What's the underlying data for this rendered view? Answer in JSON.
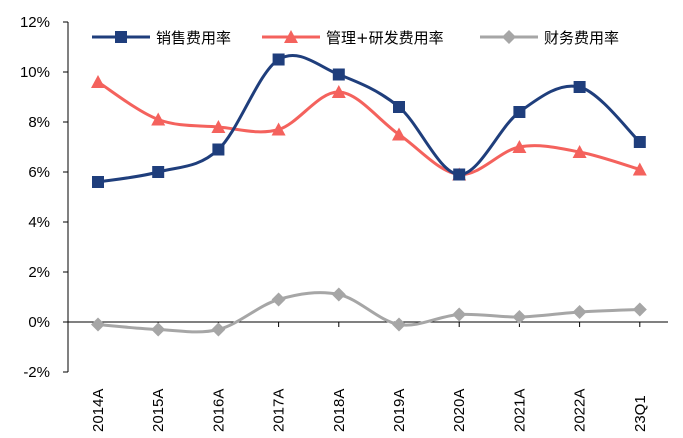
{
  "chart_data": {
    "type": "line",
    "title": "",
    "xlabel": "",
    "ylabel": "",
    "categories": [
      "2014A",
      "2015A",
      "2016A",
      "2017A",
      "2018A",
      "2019A",
      "2020A",
      "2021A",
      "2022A",
      "23Q1"
    ],
    "ylim": [
      -2,
      12
    ],
    "yticks": [
      -2,
      0,
      2,
      4,
      6,
      8,
      10,
      12
    ],
    "ytick_labels": [
      "-2%",
      "0%",
      "2%",
      "4%",
      "6%",
      "8%",
      "10%",
      "12%"
    ],
    "grid": false,
    "legend_position": "top",
    "series": [
      {
        "name": "销售费用率",
        "color": "#1F3E7C",
        "marker": "square",
        "values": [
          5.6,
          6.0,
          6.9,
          10.5,
          9.9,
          8.6,
          5.9,
          8.4,
          9.4,
          7.2
        ]
      },
      {
        "name": "管理+研发费用率",
        "color": "#F4625D",
        "marker": "triangle",
        "values": [
          9.6,
          8.1,
          7.8,
          7.7,
          9.2,
          7.5,
          5.9,
          7.0,
          6.8,
          6.1
        ]
      },
      {
        "name": "财务费用率",
        "color": "#A6A6A6",
        "marker": "diamond",
        "values": [
          -0.1,
          -0.3,
          -0.3,
          0.9,
          1.1,
          -0.1,
          0.3,
          0.2,
          0.4,
          0.5
        ]
      }
    ]
  }
}
